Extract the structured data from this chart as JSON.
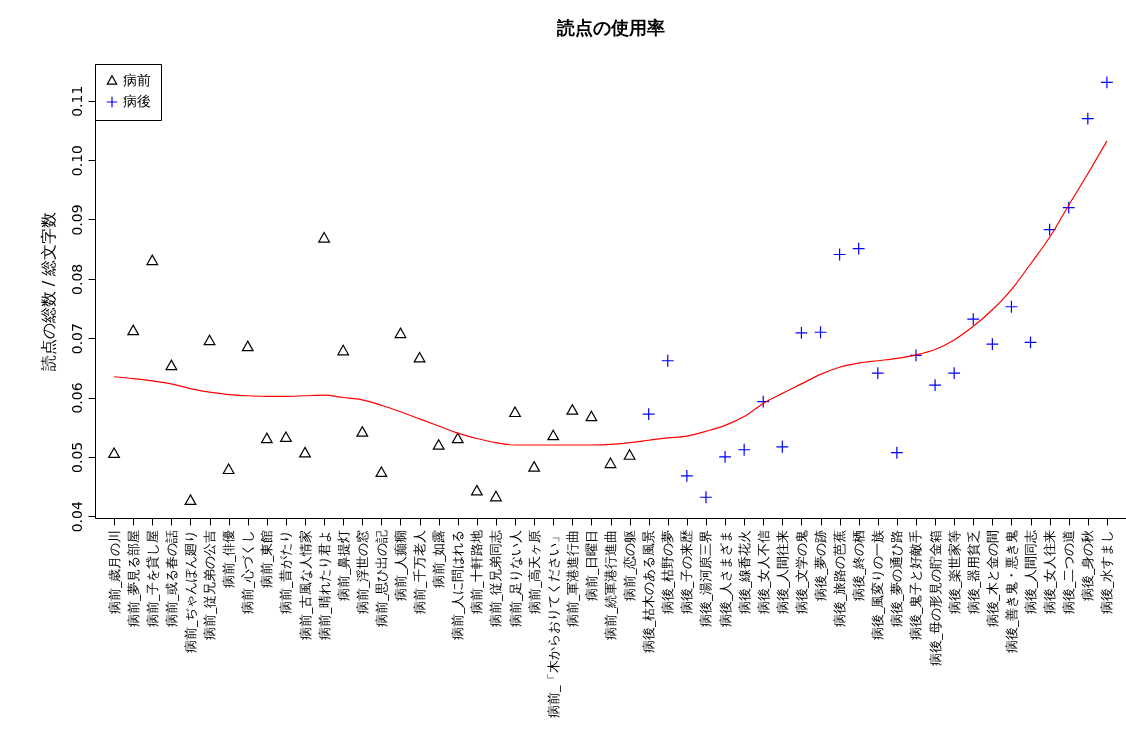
{
  "chart_data": {
    "type": "scatter",
    "title": "読点の使用率",
    "ylabel": "読点の総数 / 総文字数",
    "categories": [
      "病前_歳月の川",
      "病前_夢見る部屋",
      "病前_子を貸し屋",
      "病前_或る春の話",
      "病前_ぢゃんぽん廻り",
      "病前_従兄弟の公吉",
      "病前_俳優",
      "病前_心づくし",
      "病前_東館",
      "病前_昔がたり",
      "病前_古風な人情家",
      "病前_晴れたり君よ",
      "病前_鼻提灯",
      "病前_浮世の窓",
      "病前_思ひ出の記",
      "病前_人癲癇",
      "病前_千万老人",
      "病前_如露",
      "病前_人に問はれる",
      "病前_十軒路地",
      "病前_従兄弟同志",
      "病前_足りない人",
      "病前_高天ヶ原",
      "病前_「木からおりてください」",
      "病前_軍港進行曲",
      "病前_日曜日",
      "病前_続軍港行進曲",
      "病前_恋の躯",
      "病後_枯木のある風景",
      "病後_枯野の夢",
      "病後_子の来歴",
      "病後_湯河原三界",
      "病後_人さまざま",
      "病後_線香花火",
      "病後_女人不信",
      "病後_人間往来",
      "病後_文学の鬼",
      "病後_夢の跡",
      "病後_旅路の芭蕉",
      "病後_終の栖",
      "病後_風変りの一族",
      "病後_夢の通ひ路",
      "病後_鬼子と好敵手",
      "病後_母の形見の貯金箱",
      "病後_楽世家等",
      "病後_器用貧乏",
      "病後_木と金の間",
      "病後_善き鬼・悪き鬼",
      "病後_人間同志",
      "病後_女人往来",
      "病後_二つの道",
      "病後_身の秋",
      "病後_水すまし"
    ],
    "series": [
      {
        "name": "病前",
        "color": "#000000",
        "marker": "triangle",
        "values": [
          0.0505,
          0.0712,
          0.083,
          0.0653,
          0.0426,
          0.0695,
          0.0478,
          0.0685,
          0.053,
          0.0532,
          0.0506,
          0.0868,
          0.0678,
          0.0541,
          0.0473,
          0.0707,
          0.0666,
          0.0519,
          0.053,
          0.0442,
          0.0432,
          0.0574,
          0.0482,
          0.0535,
          0.0578,
          0.0567,
          0.0488,
          0.0502,
          null,
          null,
          null,
          null,
          null,
          null,
          null,
          null,
          null,
          null,
          null,
          null,
          null,
          null,
          null,
          null,
          null,
          null,
          null,
          null,
          null,
          null,
          null,
          null,
          null
        ]
      },
      {
        "name": "病後",
        "color": "#0000ff",
        "marker": "cross",
        "values": [
          null,
          null,
          null,
          null,
          null,
          null,
          null,
          null,
          null,
          null,
          null,
          null,
          null,
          null,
          null,
          null,
          null,
          null,
          null,
          null,
          null,
          null,
          null,
          null,
          null,
          null,
          null,
          null,
          0.0572,
          0.0662,
          0.0468,
          0.0432,
          0.05,
          0.0512,
          0.0593,
          0.0517,
          0.0709,
          0.071,
          0.0841,
          0.0851,
          0.0641,
          0.0507,
          0.0671,
          0.0621,
          0.0641,
          0.0732,
          0.069,
          0.0753,
          0.0693,
          0.0883,
          0.092,
          0.107,
          0.1131
        ]
      },
      {
        "type": "line",
        "color": "#ff0000",
        "values": [
          0.0635,
          0.0632,
          0.0628,
          0.0623,
          0.0615,
          0.0609,
          0.0605,
          0.0603,
          0.0602,
          0.0602,
          0.0603,
          0.0604,
          0.06,
          0.0596,
          0.0587,
          0.0576,
          0.0564,
          0.0552,
          0.054,
          0.0531,
          0.0524,
          0.052,
          0.052,
          0.052,
          0.052,
          0.052,
          0.0521,
          0.0524,
          0.0528,
          0.0532,
          0.0535,
          0.0543,
          0.0553,
          0.0568,
          0.059,
          0.0607,
          0.0623,
          0.0639,
          0.0651,
          0.0658,
          0.0662,
          0.0666,
          0.0672,
          0.0681,
          0.0697,
          0.072,
          0.0748,
          0.0782,
          0.0825,
          0.087,
          0.0924,
          0.0977,
          0.1032
        ]
      }
    ],
    "ylim": [
      0.0397,
      0.1162
    ],
    "yticks": [
      0.04,
      0.05,
      0.06,
      0.07,
      0.08,
      0.09,
      {
        "value": 0.1,
        "label": "0.10"
      },
      0.11
    ],
    "legend": "top left"
  }
}
